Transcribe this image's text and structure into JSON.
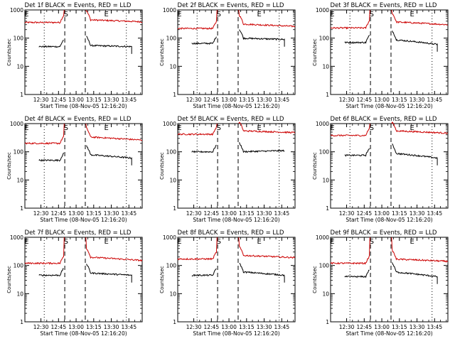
{
  "common": {
    "ylabel": "Counts/sec",
    "xlabel": "Start Time (08-Nov-05 12:16:20)",
    "x_ticks": [
      "12:30",
      "12:45",
      "13:00",
      "13:15",
      "13:30",
      "13:45"
    ],
    "y_ticks": [
      "1",
      "10",
      "100",
      "1000"
    ],
    "markers": [
      "E",
      "S",
      "E"
    ],
    "colors": {
      "events": "#000000",
      "lld": "#cc0000"
    }
  },
  "chart_data": [
    {
      "type": "line",
      "title": "Det 1f BLACK = Events, RED = LLD",
      "x_unit": "minutes after 12:16:20",
      "ylim": [
        1,
        1000
      ],
      "y_scale": "log",
      "lld_pre": 360,
      "lld_post": 450,
      "lld_end": 380,
      "ev_pre": 50,
      "ev_post": 55,
      "ev_end": 50,
      "ev_drop": true,
      "xlim": [
        0,
        100
      ],
      "shade_gap": false
    },
    {
      "type": "line",
      "title": "Det 2f BLACK = Events, RED = LLD",
      "x_unit": "minutes after 12:16:20",
      "ylim": [
        1,
        1000
      ],
      "y_scale": "log",
      "lld_pre": 220,
      "lld_post": 320,
      "lld_end": 260,
      "ev_pre": 65,
      "ev_post": 100,
      "ev_end": 90,
      "ev_drop": true,
      "xlim": [
        0,
        100
      ],
      "shade_gap": false
    },
    {
      "type": "line",
      "title": "Det 3f BLACK = Events, RED = LLD",
      "x_unit": "minutes after 12:16:20",
      "ylim": [
        1,
        1000
      ],
      "y_scale": "log",
      "lld_pre": 230,
      "lld_post": 380,
      "lld_end": 300,
      "ev_pre": 70,
      "ev_post": 90,
      "ev_end": 60,
      "ev_drop": true,
      "xlim": [
        0,
        100
      ],
      "shade_gap": false
    },
    {
      "type": "line",
      "title": "Det 4f BLACK = Events, RED = LLD",
      "x_unit": "minutes after 12:16:20",
      "ylim": [
        1,
        1000
      ],
      "y_scale": "log",
      "lld_pre": 200,
      "lld_post": 340,
      "lld_end": 260,
      "ev_pre": 50,
      "ev_post": 80,
      "ev_end": 60,
      "ev_drop": true,
      "xlim": [
        0,
        100
      ],
      "shade_gap": false
    },
    {
      "type": "line",
      "title": "Det 5f BLACK = Events, RED = LLD",
      "x_unit": "minutes after 12:16:20",
      "ylim": [
        1,
        1000
      ],
      "y_scale": "log",
      "lld_pre": 420,
      "lld_post": 560,
      "lld_end": 480,
      "ev_pre": 100,
      "ev_post": 100,
      "ev_end": 110,
      "ev_drop": false,
      "xlim": [
        0,
        100
      ],
      "shade_gap": false
    },
    {
      "type": "line",
      "title": "Det 6f BLACK = Events, RED = LLD",
      "x_unit": "minutes after 12:16:20",
      "ylim": [
        1,
        1000
      ],
      "y_scale": "log",
      "lld_pre": 380,
      "lld_post": 560,
      "lld_end": 460,
      "ev_pre": 75,
      "ev_post": 90,
      "ev_end": 60,
      "ev_drop": true,
      "xlim": [
        0,
        100
      ],
      "shade_gap": false
    },
    {
      "type": "line",
      "title": "Det 7f BLACK = Events, RED = LLD",
      "x_unit": "minutes after 12:16:20",
      "ylim": [
        1,
        1000
      ],
      "y_scale": "log",
      "lld_pre": 120,
      "lld_post": 200,
      "lld_end": 150,
      "ev_pre": 45,
      "ev_post": 55,
      "ev_end": 45,
      "ev_drop": true,
      "xlim": [
        0,
        100
      ],
      "shade_gap": false
    },
    {
      "type": "line",
      "title": "Det 8f BLACK = Events, RED = LLD",
      "x_unit": "minutes after 12:16:20",
      "ylim": [
        1,
        1000
      ],
      "y_scale": "log",
      "lld_pre": 170,
      "lld_post": 230,
      "lld_end": 190,
      "ev_pre": 45,
      "ev_post": 60,
      "ev_end": 45,
      "ev_drop": true,
      "xlim": [
        0,
        100
      ],
      "shade_gap": false
    },
    {
      "type": "line",
      "title": "Det 9f BLACK = Events, RED = LLD",
      "x_unit": "minutes after 12:16:20",
      "ylim": [
        1,
        1000
      ],
      "y_scale": "log",
      "lld_pre": 120,
      "lld_post": 170,
      "lld_end": 140,
      "ev_pre": 40,
      "ev_post": 60,
      "ev_end": 40,
      "ev_drop": true,
      "xlim": [
        0,
        100
      ],
      "shade_gap": false
    }
  ]
}
